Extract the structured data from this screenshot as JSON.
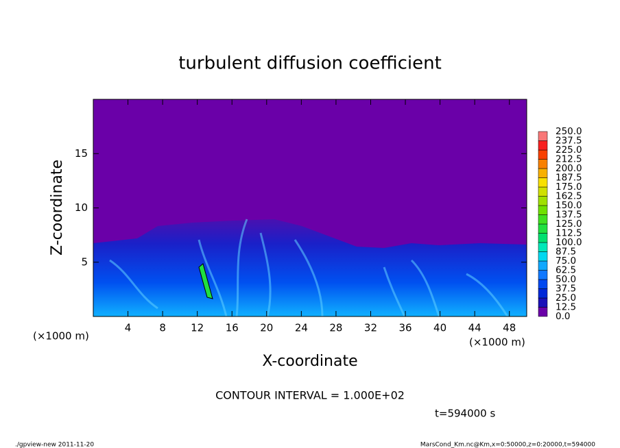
{
  "chart_data": {
    "type": "contour",
    "title": "turbulent diffusion coefficient",
    "xlabel": "X-coordinate",
    "ylabel": "Z-coordinate",
    "x_unit": "(×1000 m)",
    "xlim": [
      0,
      50
    ],
    "xticks": [
      4,
      8,
      12,
      16,
      20,
      24,
      28,
      32,
      36,
      40,
      44,
      48
    ],
    "ylim": [
      0,
      20
    ],
    "yticks": [
      5,
      10,
      15
    ],
    "colorbar": {
      "levels": [
        {
          "value": 0,
          "label": "0.0"
        },
        12.5,
        {
          "value": 25,
          "label": "25.0"
        },
        37.5,
        {
          "value": 50,
          "label": "50.0"
        },
        62.5,
        {
          "value": 75,
          "label": "75.0"
        },
        87.5,
        {
          "value": 100,
          "label": "100.0"
        },
        112.5,
        {
          "value": 125,
          "label": "125.0"
        },
        137.5,
        {
          "value": 150,
          "label": "150.0"
        },
        162.5,
        {
          "value": 175,
          "label": "175.0"
        },
        187.5,
        {
          "value": 200,
          "label": "200.0"
        },
        212.5,
        {
          "value": 225,
          "label": "225.0"
        },
        237.5,
        {
          "value": 250,
          "label": "250.0"
        }
      ],
      "colors": [
        "#6a00a8",
        "#1a10b8",
        "#0028d8",
        "#0048f0",
        "#1078ff",
        "#10a8ff",
        "#00d8f0",
        "#00e8b8",
        "#00e070",
        "#20e040",
        "#40e020",
        "#70e000",
        "#a0e000",
        "#d0e000",
        "#f8e000",
        "#f8b000",
        "#f88000",
        "#f84000",
        "#f82020",
        "#f87878"
      ]
    },
    "contour_interval": "CONTOUR INTERVAL = 1.000E+02",
    "time_label": "t=594000 s",
    "footer_left": "./gpview-new   2011-11-20",
    "footer_right": "MarsCond_Km.nc@Km,x=0:50000,z=0:20000,t=594000"
  }
}
